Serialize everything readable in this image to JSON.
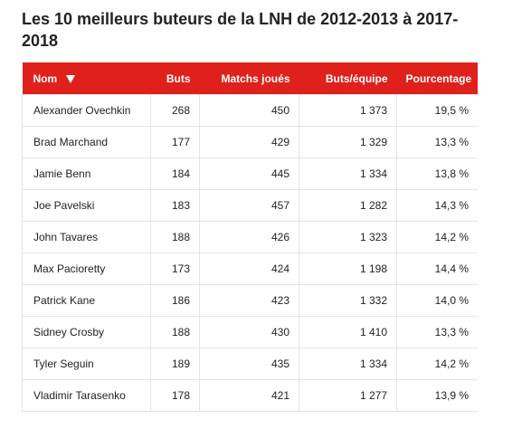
{
  "title": "Les 10 meilleurs buteurs de la LNH de 2012-2013 à 2017-2018",
  "table": {
    "headers": {
      "name": "Nom",
      "goals": "Buts",
      "games": "Matchs joués",
      "team_goals": "Buts/équipe",
      "percentage": "Pourcentage"
    },
    "sort_icon": "triangle-down-icon",
    "accent_color": "#e0211b",
    "rows": [
      {
        "name": "Alexander Ovechkin",
        "goals": "268",
        "games": "450",
        "team_goals": "1 373",
        "percentage": "19,5 %"
      },
      {
        "name": "Brad Marchand",
        "goals": "177",
        "games": "429",
        "team_goals": "1 329",
        "percentage": "13,3 %"
      },
      {
        "name": "Jamie Benn",
        "goals": "184",
        "games": "445",
        "team_goals": "1 334",
        "percentage": "13,8 %"
      },
      {
        "name": "Joe Pavelski",
        "goals": "183",
        "games": "457",
        "team_goals": "1 282",
        "percentage": "14,3 %"
      },
      {
        "name": "John Tavares",
        "goals": "188",
        "games": "426",
        "team_goals": "1 323",
        "percentage": "14,2 %"
      },
      {
        "name": "Max Pacioretty",
        "goals": "173",
        "games": "424",
        "team_goals": "1 198",
        "percentage": "14,4 %"
      },
      {
        "name": "Patrick Kane",
        "goals": "186",
        "games": "423",
        "team_goals": "1 332",
        "percentage": "14,0 %"
      },
      {
        "name": "Sidney Crosby",
        "goals": "188",
        "games": "430",
        "team_goals": "1 410",
        "percentage": "13,3 %"
      },
      {
        "name": "Tyler Seguin",
        "goals": "189",
        "games": "435",
        "team_goals": "1 334",
        "percentage": "14,2 %"
      },
      {
        "name": "Vladimir Tarasenko",
        "goals": "178",
        "games": "421",
        "team_goals": "1 277",
        "percentage": "13,9 %"
      }
    ]
  }
}
